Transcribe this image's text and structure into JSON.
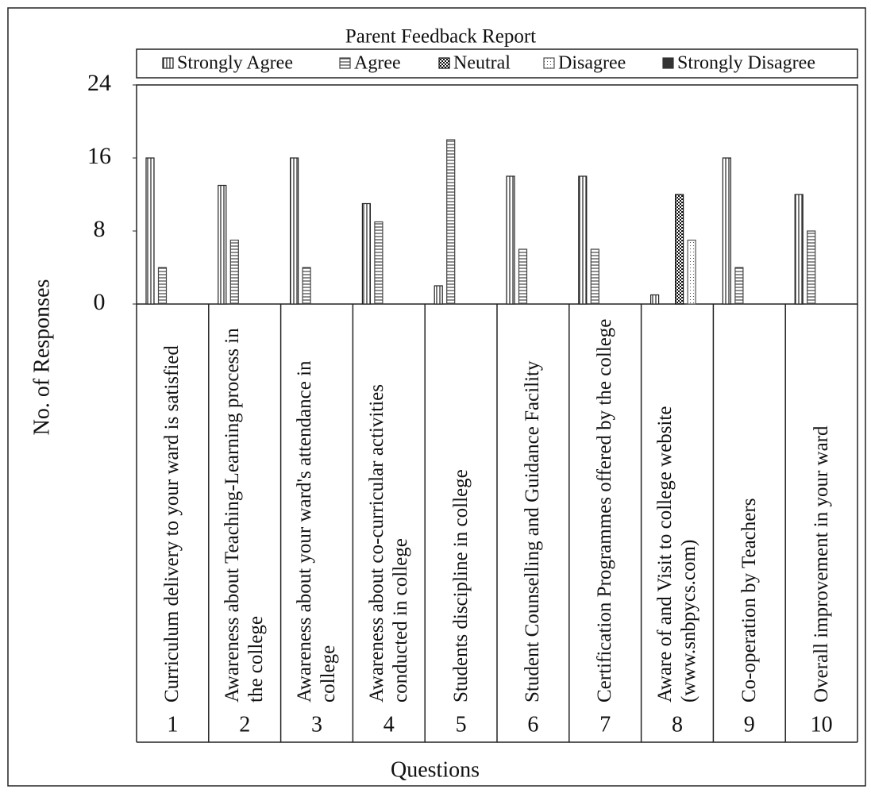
{
  "chart_data": {
    "type": "bar",
    "title": "Parent Feedback Report",
    "xlabel": "Questions",
    "ylabel": "No. of Responses",
    "categories": [
      "Curriculum delivery to your ward is satisfied",
      "Awareness about Teaching-Learning process in the college",
      "Awareness about your ward's attendance in college",
      "Awareness about co-curricular activities conducted in college",
      "Students discipline in college",
      "Student Counselling and Guidance Facility",
      "Certification Programmes offered by the college",
      "Aware of and Visit to college website  (www.snbpycs.com)",
      "Co-operation by Teachers",
      "Overall improvement in your ward"
    ],
    "question_numbers": [
      "1",
      "2",
      "3",
      "4",
      "5",
      "6",
      "7",
      "8",
      "9",
      "10"
    ],
    "series": [
      {
        "name": "Strongly Agree",
        "color": "#222222",
        "values": [
          16,
          13,
          16,
          11,
          2,
          14,
          14,
          1,
          16,
          12
        ]
      },
      {
        "name": "Agree",
        "color": "#444444",
        "values": [
          4,
          7,
          4,
          9,
          18,
          6,
          6,
          0,
          4,
          8
        ]
      },
      {
        "name": "Neutral",
        "color": "#111111",
        "values": [
          0,
          0,
          0,
          0,
          0,
          0,
          0,
          12,
          0,
          0
        ]
      },
      {
        "name": "Disagree",
        "color": "#555555",
        "values": [
          0,
          0,
          0,
          0,
          0,
          0,
          0,
          7,
          0,
          0
        ]
      },
      {
        "name": "Strongly Disagree",
        "color": "#333333",
        "values": [
          0,
          0,
          0,
          0,
          0,
          0,
          0,
          0,
          0,
          0
        ]
      }
    ],
    "ylim": [
      0,
      24
    ],
    "yticks": [
      0,
      8,
      16,
      24
    ],
    "grid": false
  }
}
